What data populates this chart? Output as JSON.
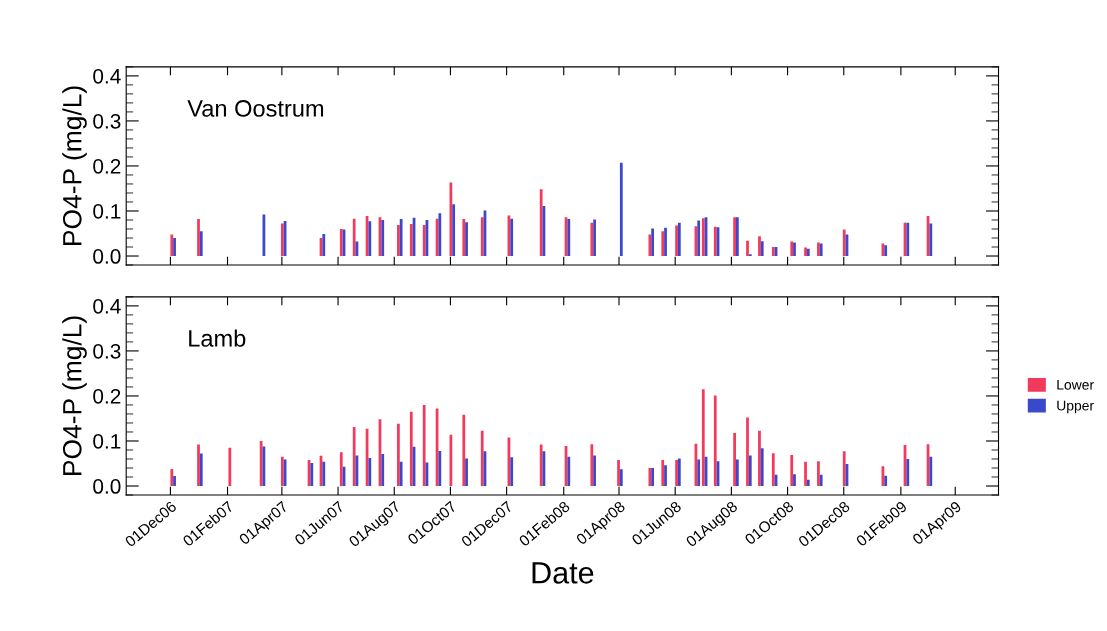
{
  "chart_data": [
    {
      "type": "bar",
      "title": "Van Oostrum",
      "ylabel": "PO4-P (mg/L)",
      "tick_labels": "y",
      "x": [
        "2006-12-04",
        "2007-01-02",
        "2007-03-11",
        "2007-04-03",
        "2007-05-15",
        "2007-06-06",
        "2007-06-20",
        "2007-07-04",
        "2007-07-18",
        "2007-08-07",
        "2007-08-21",
        "2007-09-04",
        "2007-09-18",
        "2007-10-03",
        "2007-10-17",
        "2007-11-06",
        "2007-12-05",
        "2008-01-09",
        "2008-02-05",
        "2008-03-04",
        "2008-04-02",
        "2008-05-06",
        "2008-05-20",
        "2008-06-04",
        "2008-06-25",
        "2008-07-03",
        "2008-07-16",
        "2008-08-06",
        "2008-08-20",
        "2008-09-02",
        "2008-09-17",
        "2008-10-07",
        "2008-10-22",
        "2008-11-05",
        "2008-12-03",
        "2009-01-14",
        "2009-02-07",
        "2009-03-04"
      ],
      "series": [
        {
          "color": "#f23a5c",
          "values": [
            0.048,
            0.082,
            null,
            0.072,
            0.04,
            0.06,
            0.083,
            0.089,
            0.086,
            0.069,
            0.071,
            0.069,
            0.083,
            0.163,
            0.082,
            0.086,
            0.09,
            0.148,
            0.086,
            0.074,
            null,
            0.048,
            0.055,
            0.068,
            0.066,
            0.084,
            0.065,
            0.086,
            0.034,
            0.044,
            0.02,
            0.032,
            0.019,
            0.03,
            0.059,
            0.028,
            0.074,
            0.089
          ]
        },
        {
          "color": "#3a48cc",
          "values": [
            0.04,
            0.055,
            0.092,
            0.078,
            0.049,
            0.059,
            0.032,
            0.077,
            0.08,
            0.082,
            0.085,
            0.08,
            0.095,
            0.115,
            0.075,
            0.101,
            0.083,
            0.111,
            0.082,
            0.081,
            0.207,
            0.061,
            0.063,
            0.074,
            0.079,
            0.086,
            0.064,
            0.086,
            0.004,
            0.033,
            0.02,
            0.03,
            0.016,
            0.028,
            0.048,
            0.024,
            0.074,
            0.072
          ]
        }
      ],
      "xlim": [
        "2006-10-14",
        "2009-05-18"
      ],
      "xticks": [
        {
          "value": "2006-12-01",
          "label": null
        },
        {
          "value": "2007-02-01",
          "label": null
        },
        {
          "value": "2007-04-01",
          "label": null
        },
        {
          "value": "2007-06-01",
          "label": null
        },
        {
          "value": "2007-08-01",
          "label": null
        },
        {
          "value": "2007-10-01",
          "label": null
        },
        {
          "value": "2007-12-01",
          "label": null
        },
        {
          "value": "2008-02-01",
          "label": null
        },
        {
          "value": "2008-04-01",
          "label": null
        },
        {
          "value": "2008-06-01",
          "label": null
        },
        {
          "value": "2008-08-01",
          "label": null
        },
        {
          "value": "2008-10-01",
          "label": null
        },
        {
          "value": "2008-12-01",
          "label": null
        },
        {
          "value": "2009-02-01",
          "label": null
        },
        {
          "value": "2009-04-01",
          "label": null
        }
      ],
      "ylim": [
        -0.02,
        0.42
      ],
      "yticks": [
        {
          "value": 0,
          "label": "0.0"
        },
        {
          "value": 0.1,
          "label": "0.1"
        },
        {
          "value": 0.2,
          "label": "0.2"
        },
        {
          "value": 0.3,
          "label": "0.3"
        },
        {
          "value": 0.4,
          "label": "0.4"
        }
      ]
    },
    {
      "type": "bar",
      "title": "Lamb",
      "ylabel": "PO4-P (mg/L)",
      "xlabel": "Date",
      "legend": "right",
      "x": [
        "2006-12-04",
        "2007-01-02",
        "2007-02-05",
        "2007-03-11",
        "2007-04-03",
        "2007-05-02",
        "2007-05-15",
        "2007-06-06",
        "2007-06-20",
        "2007-07-04",
        "2007-07-18",
        "2007-08-07",
        "2007-08-21",
        "2007-09-04",
        "2007-09-18",
        "2007-10-03",
        "2007-10-17",
        "2007-11-06",
        "2007-12-05",
        "2008-01-09",
        "2008-02-05",
        "2008-03-04",
        "2008-04-02",
        "2008-05-06",
        "2008-05-20",
        "2008-06-04",
        "2008-06-25",
        "2008-07-03",
        "2008-07-16",
        "2008-08-06",
        "2008-08-20",
        "2008-09-02",
        "2008-09-17",
        "2008-10-07",
        "2008-10-22",
        "2008-11-05",
        "2008-12-03",
        "2009-01-14",
        "2009-02-07",
        "2009-03-04"
      ],
      "series": [
        {
          "name": "Lower",
          "color": "#f23a5c",
          "values": [
            0.038,
            0.092,
            0.085,
            0.1,
            0.065,
            0.058,
            0.067,
            0.075,
            0.131,
            0.127,
            0.148,
            0.138,
            0.165,
            0.18,
            0.172,
            0.114,
            0.158,
            0.123,
            0.108,
            0.092,
            0.089,
            0.093,
            0.058,
            0.04,
            0.058,
            0.058,
            0.094,
            0.215,
            0.201,
            0.118,
            0.152,
            0.123,
            0.073,
            0.069,
            0.054,
            0.055,
            0.077,
            0.044,
            0.091,
            0.093
          ]
        },
        {
          "name": "Upper",
          "color": "#3a48cc",
          "values": [
            0.022,
            0.072,
            null,
            0.088,
            0.059,
            0.051,
            0.054,
            0.043,
            0.068,
            0.062,
            0.071,
            0.054,
            0.087,
            0.052,
            0.078,
            null,
            0.061,
            0.077,
            0.064,
            0.077,
            0.065,
            0.068,
            0.037,
            0.04,
            0.046,
            0.061,
            0.059,
            0.065,
            0.055,
            0.059,
            0.068,
            0.084,
            0.025,
            0.026,
            0.014,
            0.025,
            0.049,
            0.023,
            0.06,
            0.065
          ]
        }
      ],
      "xlim": [
        "2006-10-14",
        "2009-05-18"
      ],
      "xticks": [
        {
          "value": "2006-12-01",
          "label": "01Dec06"
        },
        {
          "value": "2007-02-01",
          "label": "01Feb07"
        },
        {
          "value": "2007-04-01",
          "label": "01Apr07"
        },
        {
          "value": "2007-06-01",
          "label": "01Jun07"
        },
        {
          "value": "2007-08-01",
          "label": "01Aug07"
        },
        {
          "value": "2007-10-01",
          "label": "01Oct07"
        },
        {
          "value": "2007-12-01",
          "label": "01Dec07"
        },
        {
          "value": "2008-02-01",
          "label": "01Feb08"
        },
        {
          "value": "2008-04-01",
          "label": "01Apr08"
        },
        {
          "value": "2008-06-01",
          "label": "01Jun08"
        },
        {
          "value": "2008-08-01",
          "label": "01Aug08"
        },
        {
          "value": "2008-10-01",
          "label": "01Oct08"
        },
        {
          "value": "2008-12-01",
          "label": "01Dec08"
        },
        {
          "value": "2009-02-01",
          "label": "01Feb09"
        },
        {
          "value": "2009-04-01",
          "label": "01Apr09"
        }
      ],
      "ylim": [
        -0.02,
        0.42
      ],
      "yticks": [
        {
          "value": 0,
          "label": "0.0"
        },
        {
          "value": 0.1,
          "label": "0.1"
        },
        {
          "value": 0.2,
          "label": "0.2"
        },
        {
          "value": 0.3,
          "label": "0.3"
        },
        {
          "value": 0.4,
          "label": "0.4"
        }
      ]
    }
  ]
}
